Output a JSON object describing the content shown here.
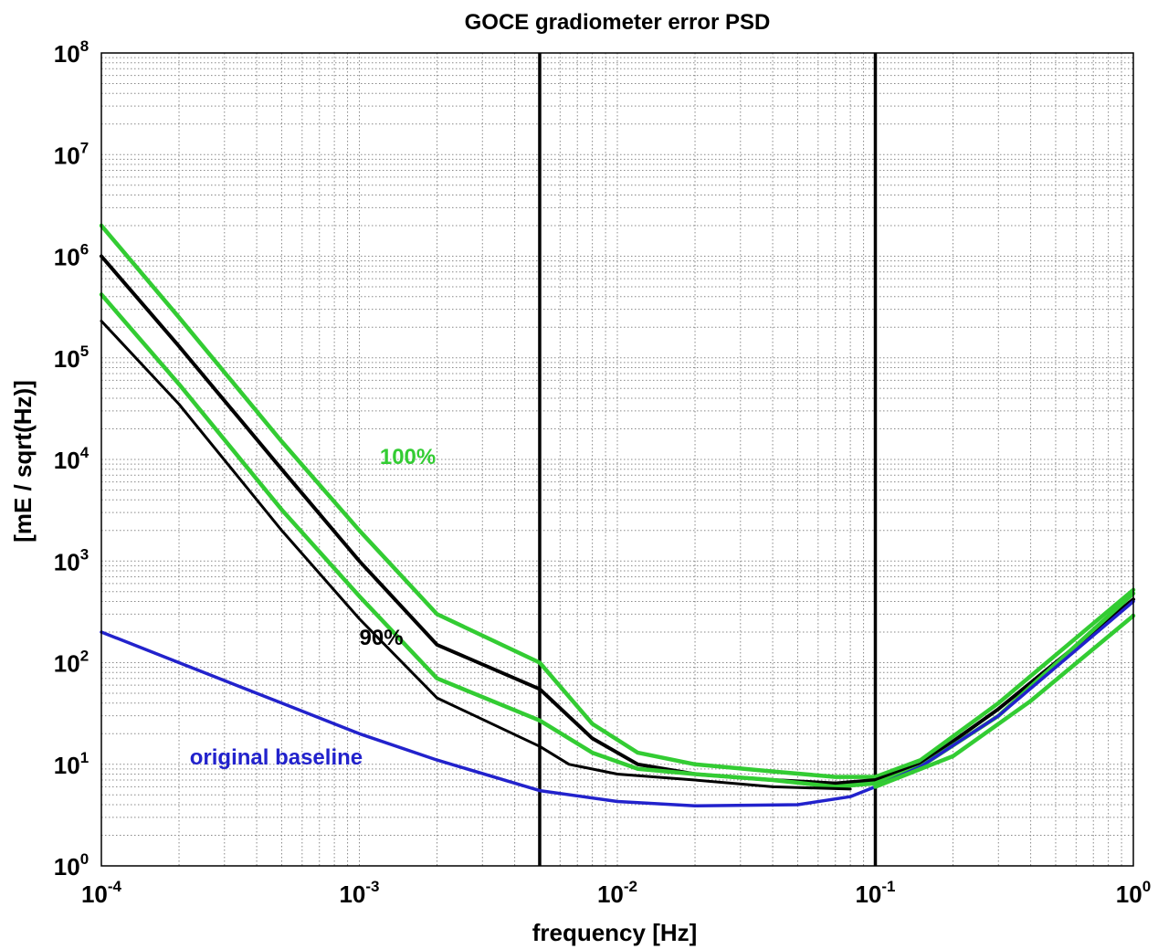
{
  "chart_data": {
    "type": "line",
    "title": "GOCE gradiometer error PSD",
    "xlabel": "frequency [Hz]",
    "ylabel": "[mE / sqrt(Hz)]",
    "x_scale": "log",
    "y_scale": "log",
    "xlim": [
      0.0001,
      1
    ],
    "ylim": [
      1,
      100000000
    ],
    "grid": true,
    "x_ticks": [
      {
        "base": "10",
        "exp": "-4",
        "value": 0.0001
      },
      {
        "base": "10",
        "exp": "-3",
        "value": 0.001
      },
      {
        "base": "10",
        "exp": "-2",
        "value": 0.01
      },
      {
        "base": "10",
        "exp": "-1",
        "value": 0.1
      },
      {
        "base": "10",
        "exp": "0",
        "value": 1
      }
    ],
    "y_ticks": [
      {
        "base": "10",
        "exp": "0",
        "value": 1
      },
      {
        "base": "10",
        "exp": "1",
        "value": 10
      },
      {
        "base": "10",
        "exp": "2",
        "value": 100
      },
      {
        "base": "10",
        "exp": "3",
        "value": 1000
      },
      {
        "base": "10",
        "exp": "4",
        "value": 10000
      },
      {
        "base": "10",
        "exp": "5",
        "value": 100000
      },
      {
        "base": "10",
        "exp": "6",
        "value": 1000000
      },
      {
        "base": "10",
        "exp": "7",
        "value": 10000000
      },
      {
        "base": "10",
        "exp": "8",
        "value": 100000000
      }
    ],
    "vertical_lines": [
      0.005,
      0.1
    ],
    "series": [
      {
        "color": "#33cc33",
        "width": 4.5,
        "points": [
          [
            0.0001,
            2000000
          ],
          [
            0.0002,
            250000
          ],
          [
            0.0005,
            15000
          ],
          [
            0.001,
            2000
          ],
          [
            0.002,
            300
          ],
          [
            0.005,
            100
          ],
          [
            0.008,
            25
          ],
          [
            0.012,
            13
          ],
          [
            0.02,
            10
          ],
          [
            0.04,
            8.5
          ],
          [
            0.07,
            7.5
          ],
          [
            0.1,
            7.5
          ],
          [
            0.15,
            11
          ],
          [
            0.3,
            40
          ],
          [
            1,
            520
          ]
        ]
      },
      {
        "color": "#000000",
        "width": 4,
        "points": [
          [
            0.0001,
            1000000
          ],
          [
            0.0002,
            130000
          ],
          [
            0.0005,
            8000
          ],
          [
            0.001,
            1000
          ],
          [
            0.002,
            150
          ],
          [
            0.005,
            55
          ],
          [
            0.008,
            18
          ],
          [
            0.012,
            10
          ],
          [
            0.02,
            8
          ],
          [
            0.04,
            7
          ],
          [
            0.07,
            6.5
          ],
          [
            0.1,
            7
          ],
          [
            0.15,
            10
          ],
          [
            0.3,
            35
          ],
          [
            1,
            420
          ]
        ]
      },
      {
        "color": "#33cc33",
        "width": 4.5,
        "points": [
          [
            0.0001,
            420000
          ],
          [
            0.0002,
            55000
          ],
          [
            0.0005,
            3200
          ],
          [
            0.001,
            450
          ],
          [
            0.002,
            70
          ],
          [
            0.005,
            27
          ],
          [
            0.008,
            13
          ],
          [
            0.012,
            9
          ],
          [
            0.02,
            8
          ],
          [
            0.04,
            7
          ],
          [
            0.07,
            6
          ],
          [
            0.1,
            6.5
          ],
          [
            0.15,
            9.5
          ],
          [
            0.3,
            30
          ],
          [
            1,
            480
          ]
        ]
      },
      {
        "color": "#000000",
        "width": 3,
        "points": [
          [
            0.0001,
            230000
          ],
          [
            0.0002,
            35000
          ],
          [
            0.0005,
            2000
          ],
          [
            0.001,
            270
          ],
          [
            0.002,
            45
          ],
          [
            0.005,
            15
          ],
          [
            0.0065,
            10
          ],
          [
            0.01,
            8
          ],
          [
            0.02,
            7
          ],
          [
            0.04,
            6
          ],
          [
            0.08,
            5.7
          ]
        ]
      },
      {
        "color": "#2222cc",
        "width": 3.5,
        "points": [
          [
            0.0001,
            200
          ],
          [
            0.0002,
            100
          ],
          [
            0.0005,
            40
          ],
          [
            0.001,
            20
          ],
          [
            0.002,
            11
          ],
          [
            0.005,
            5.5
          ],
          [
            0.01,
            4.3
          ],
          [
            0.02,
            3.9
          ],
          [
            0.05,
            4
          ],
          [
            0.08,
            4.8
          ],
          [
            0.1,
            6
          ],
          [
            0.15,
            9.5
          ],
          [
            0.3,
            30
          ],
          [
            1,
            400
          ]
        ]
      },
      {
        "color": "#33cc33",
        "width": 4.5,
        "points": [
          [
            0.1,
            6
          ],
          [
            0.2,
            12
          ],
          [
            0.4,
            42
          ],
          [
            1,
            290
          ]
        ]
      }
    ],
    "annotations": [
      {
        "text": "100%",
        "x": 0.0012,
        "y": 9000,
        "color": "#33cc33"
      },
      {
        "text": "90%",
        "x": 0.001,
        "y": 150,
        "color": "#000000"
      },
      {
        "text": "original baseline",
        "x": 0.00022,
        "y": 10,
        "color": "#2222cc"
      }
    ]
  }
}
